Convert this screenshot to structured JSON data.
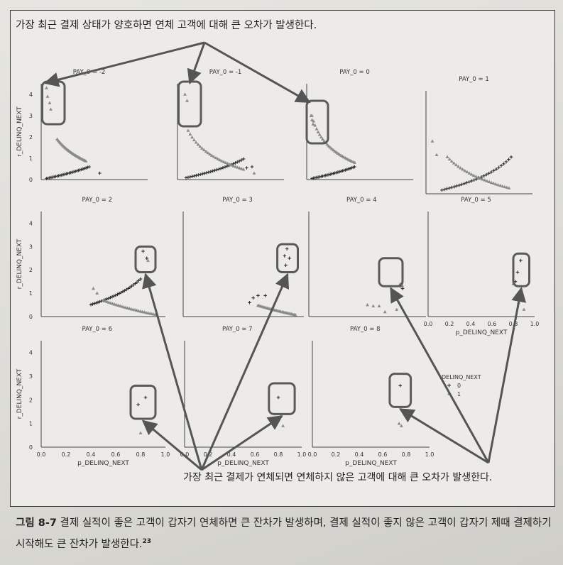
{
  "top_caption": "가장 최근 결제 상태가 양호하면 연체 고객에 대해 큰 오차가 발생한다.",
  "bottom_caption": "가장 최근 결제가 연체되면 연체하지 않은 고객에 대해 큰 오차가 발생한다.",
  "figure_caption": {
    "number": "그림 8-7",
    "text": "결제 실적이 좋은 고객이 갑자기 연체하면 큰 잔차가 발생하며, 결제 실적이 좋지 않은 고객이 갑자기 제때 결제하기 시작해도 큰 잔차가 발생한다.",
    "footnote": "23"
  },
  "colors": {
    "positive": "#2f2f2f",
    "negative": "#8a8a8a",
    "highlight": "#5a5a5a",
    "arrow": "#555555"
  },
  "chart_data": {
    "type": "scatter",
    "xlabel": "p_DELINQ_NEXT",
    "ylabel": "r_DELINQ_NEXT",
    "xlim": [
      0.0,
      1.0
    ],
    "ylim": [
      0,
      4.5
    ],
    "xticks": [
      "0.0",
      "0.2",
      "0.4",
      "0.6",
      "0.8",
      "1.0"
    ],
    "yticks": [
      "0",
      "1",
      "2",
      "3",
      "4"
    ],
    "legend": {
      "title": "DELINQ_NEXT",
      "entries": [
        {
          "marker": "+",
          "label": "0"
        },
        {
          "marker": "▲",
          "label": "1"
        }
      ],
      "placement": "right"
    },
    "panels": [
      {
        "title": "PAY_0 = -2",
        "series": [
          {
            "name": "0",
            "marker": "+",
            "kind": "curve",
            "x_range": [
              0.05,
              0.45
            ],
            "formula": "plus"
          },
          {
            "name": "0",
            "marker": "+",
            "points": [
              [
                0.55,
                0.3
              ]
            ]
          },
          {
            "name": "1",
            "marker": "triangle",
            "kind": "curve",
            "x_range": [
              0.15,
              0.42
            ],
            "formula": "tri"
          },
          {
            "name": "1",
            "marker": "triangle",
            "points": [
              [
                0.05,
                4.3
              ],
              [
                0.06,
                3.9
              ],
              [
                0.08,
                3.6
              ],
              [
                0.09,
                3.3
              ]
            ]
          }
        ],
        "highlight": [
          0.01,
          0.22,
          2.6,
          4.6
        ]
      },
      {
        "title": "PAY_0 = -1",
        "series": [
          {
            "name": "0",
            "marker": "+",
            "kind": "curve",
            "x_range": [
              0.08,
              0.62
            ],
            "formula": "plus"
          },
          {
            "name": "0",
            "marker": "+",
            "points": [
              [
                0.65,
                0.55
              ],
              [
                0.7,
                0.6
              ]
            ]
          },
          {
            "name": "1",
            "marker": "triangle",
            "kind": "curve",
            "x_range": [
              0.1,
              0.62
            ],
            "formula": "tri"
          },
          {
            "name": "1",
            "marker": "triangle",
            "points": [
              [
                0.07,
                4.0
              ],
              [
                0.09,
                3.7
              ],
              [
                0.72,
                0.3
              ]
            ]
          }
        ],
        "highlight": [
          0.01,
          0.22,
          2.5,
          4.6
        ]
      },
      {
        "title": "PAY_0 = 0",
        "series": [
          {
            "name": "0",
            "marker": "+",
            "kind": "curve",
            "x_range": [
              0.05,
              0.45
            ],
            "formula": "plus"
          },
          {
            "name": "1",
            "marker": "triangle",
            "kind": "curve",
            "x_range": [
              0.05,
              0.45
            ],
            "formula": "tri"
          },
          {
            "name": "1",
            "marker": "triangle",
            "points": [
              [
                0.04,
                3.0
              ],
              [
                0.05,
                2.8
              ],
              [
                0.06,
                2.6
              ]
            ]
          }
        ],
        "highlight": [
          0.0,
          0.2,
          1.7,
          3.7
        ]
      },
      {
        "title": "PAY_0 = 1",
        "series": [
          {
            "name": "0",
            "marker": "+",
            "kind": "curve",
            "x_range": [
              0.15,
              0.8
            ],
            "formula": "plus"
          },
          {
            "name": "1",
            "marker": "triangle",
            "kind": "curve",
            "x_range": [
              0.2,
              0.78
            ],
            "formula": "tri"
          },
          {
            "name": "1",
            "marker": "triangle",
            "points": [
              [
                0.06,
                2.3
              ],
              [
                0.1,
                1.7
              ]
            ]
          }
        ],
        "highlight": null
      },
      {
        "title": "PAY_0 = 2",
        "series": [
          {
            "name": "0",
            "marker": "+",
            "kind": "curve",
            "x_range": [
              0.4,
              0.8
            ],
            "formula": "plus"
          },
          {
            "name": "1",
            "marker": "triangle",
            "kind": "curve",
            "x_range": [
              0.5,
              0.92
            ],
            "formula": "tri"
          },
          {
            "name": "0",
            "marker": "+",
            "points": [
              [
                0.82,
                2.8
              ],
              [
                0.85,
                2.5
              ]
            ]
          },
          {
            "name": "1",
            "marker": "triangle",
            "points": [
              [
                0.42,
                1.2
              ],
              [
                0.45,
                1.0
              ],
              [
                0.86,
                2.4
              ]
            ]
          }
        ],
        "highlight": [
          0.76,
          0.92,
          1.9,
          3.0
        ]
      },
      {
        "title": "PAY_0 = 3",
        "series": [
          {
            "name": "0",
            "marker": "+",
            "points": [
              [
                0.55,
                0.6
              ],
              [
                0.58,
                0.8
              ],
              [
                0.62,
                0.9
              ],
              [
                0.68,
                0.9
              ],
              [
                0.84,
                2.6
              ],
              [
                0.86,
                2.9
              ],
              [
                0.88,
                2.5
              ],
              [
                0.85,
                2.2
              ]
            ]
          },
          {
            "name": "1",
            "marker": "triangle",
            "kind": "curve",
            "x_range": [
              0.62,
              0.93
            ],
            "formula": "tri"
          }
        ],
        "highlight": [
          0.78,
          0.95,
          1.9,
          3.1
        ]
      },
      {
        "title": "PAY_0 = 4",
        "series": [
          {
            "name": "0",
            "marker": "+",
            "points": [
              [
                0.78,
                1.3
              ],
              [
                0.8,
                1.2
              ]
            ]
          },
          {
            "name": "1",
            "marker": "triangle",
            "points": [
              [
                0.5,
                0.5
              ],
              [
                0.55,
                0.45
              ],
              [
                0.6,
                0.45
              ],
              [
                0.65,
                0.2
              ],
              [
                0.75,
                0.3
              ],
              [
                0.78,
                1.4
              ],
              [
                0.8,
                1.3
              ]
            ]
          }
        ],
        "highlight": [
          0.6,
          0.8,
          1.3,
          2.5
        ]
      },
      {
        "title": "PAY_0 = 5",
        "series": [
          {
            "name": "0",
            "marker": "+",
            "points": [
              [
                0.87,
                2.4
              ],
              [
                0.84,
                1.9
              ],
              [
                0.82,
                1.5
              ]
            ]
          },
          {
            "name": "1",
            "marker": "triangle",
            "points": [
              [
                0.8,
                1.4
              ],
              [
                0.85,
                0.6
              ],
              [
                0.9,
                0.3
              ]
            ]
          }
        ],
        "highlight": [
          0.8,
          0.95,
          1.3,
          2.7
        ]
      },
      {
        "title": "PAY_0 = 6",
        "series": [
          {
            "name": "0",
            "marker": "+",
            "points": [
              [
                0.78,
                1.8
              ],
              [
                0.84,
                2.1
              ]
            ]
          },
          {
            "name": "1",
            "marker": "triangle",
            "points": [
              [
                0.8,
                0.6
              ]
            ]
          }
        ],
        "highlight": [
          0.72,
          0.92,
          1.2,
          2.6
        ]
      },
      {
        "title": "PAY_0 = 7",
        "series": [
          {
            "name": "0",
            "marker": "+",
            "points": [
              [
                0.8,
                2.1
              ]
            ]
          },
          {
            "name": "1",
            "marker": "triangle",
            "points": [
              [
                0.82,
                1.3
              ],
              [
                0.84,
                0.9
              ]
            ]
          }
        ],
        "highlight": [
          0.72,
          0.94,
          1.4,
          2.7
        ]
      },
      {
        "title": "PAY_0 = 8",
        "series": [
          {
            "name": "0",
            "marker": "+",
            "points": [
              [
                0.75,
                2.6
              ]
            ]
          },
          {
            "name": "1",
            "marker": "triangle",
            "points": [
              [
                0.74,
                1.0
              ],
              [
                0.76,
                0.9
              ]
            ]
          }
        ],
        "highlight": [
          0.66,
          0.84,
          1.7,
          3.1
        ]
      }
    ]
  }
}
